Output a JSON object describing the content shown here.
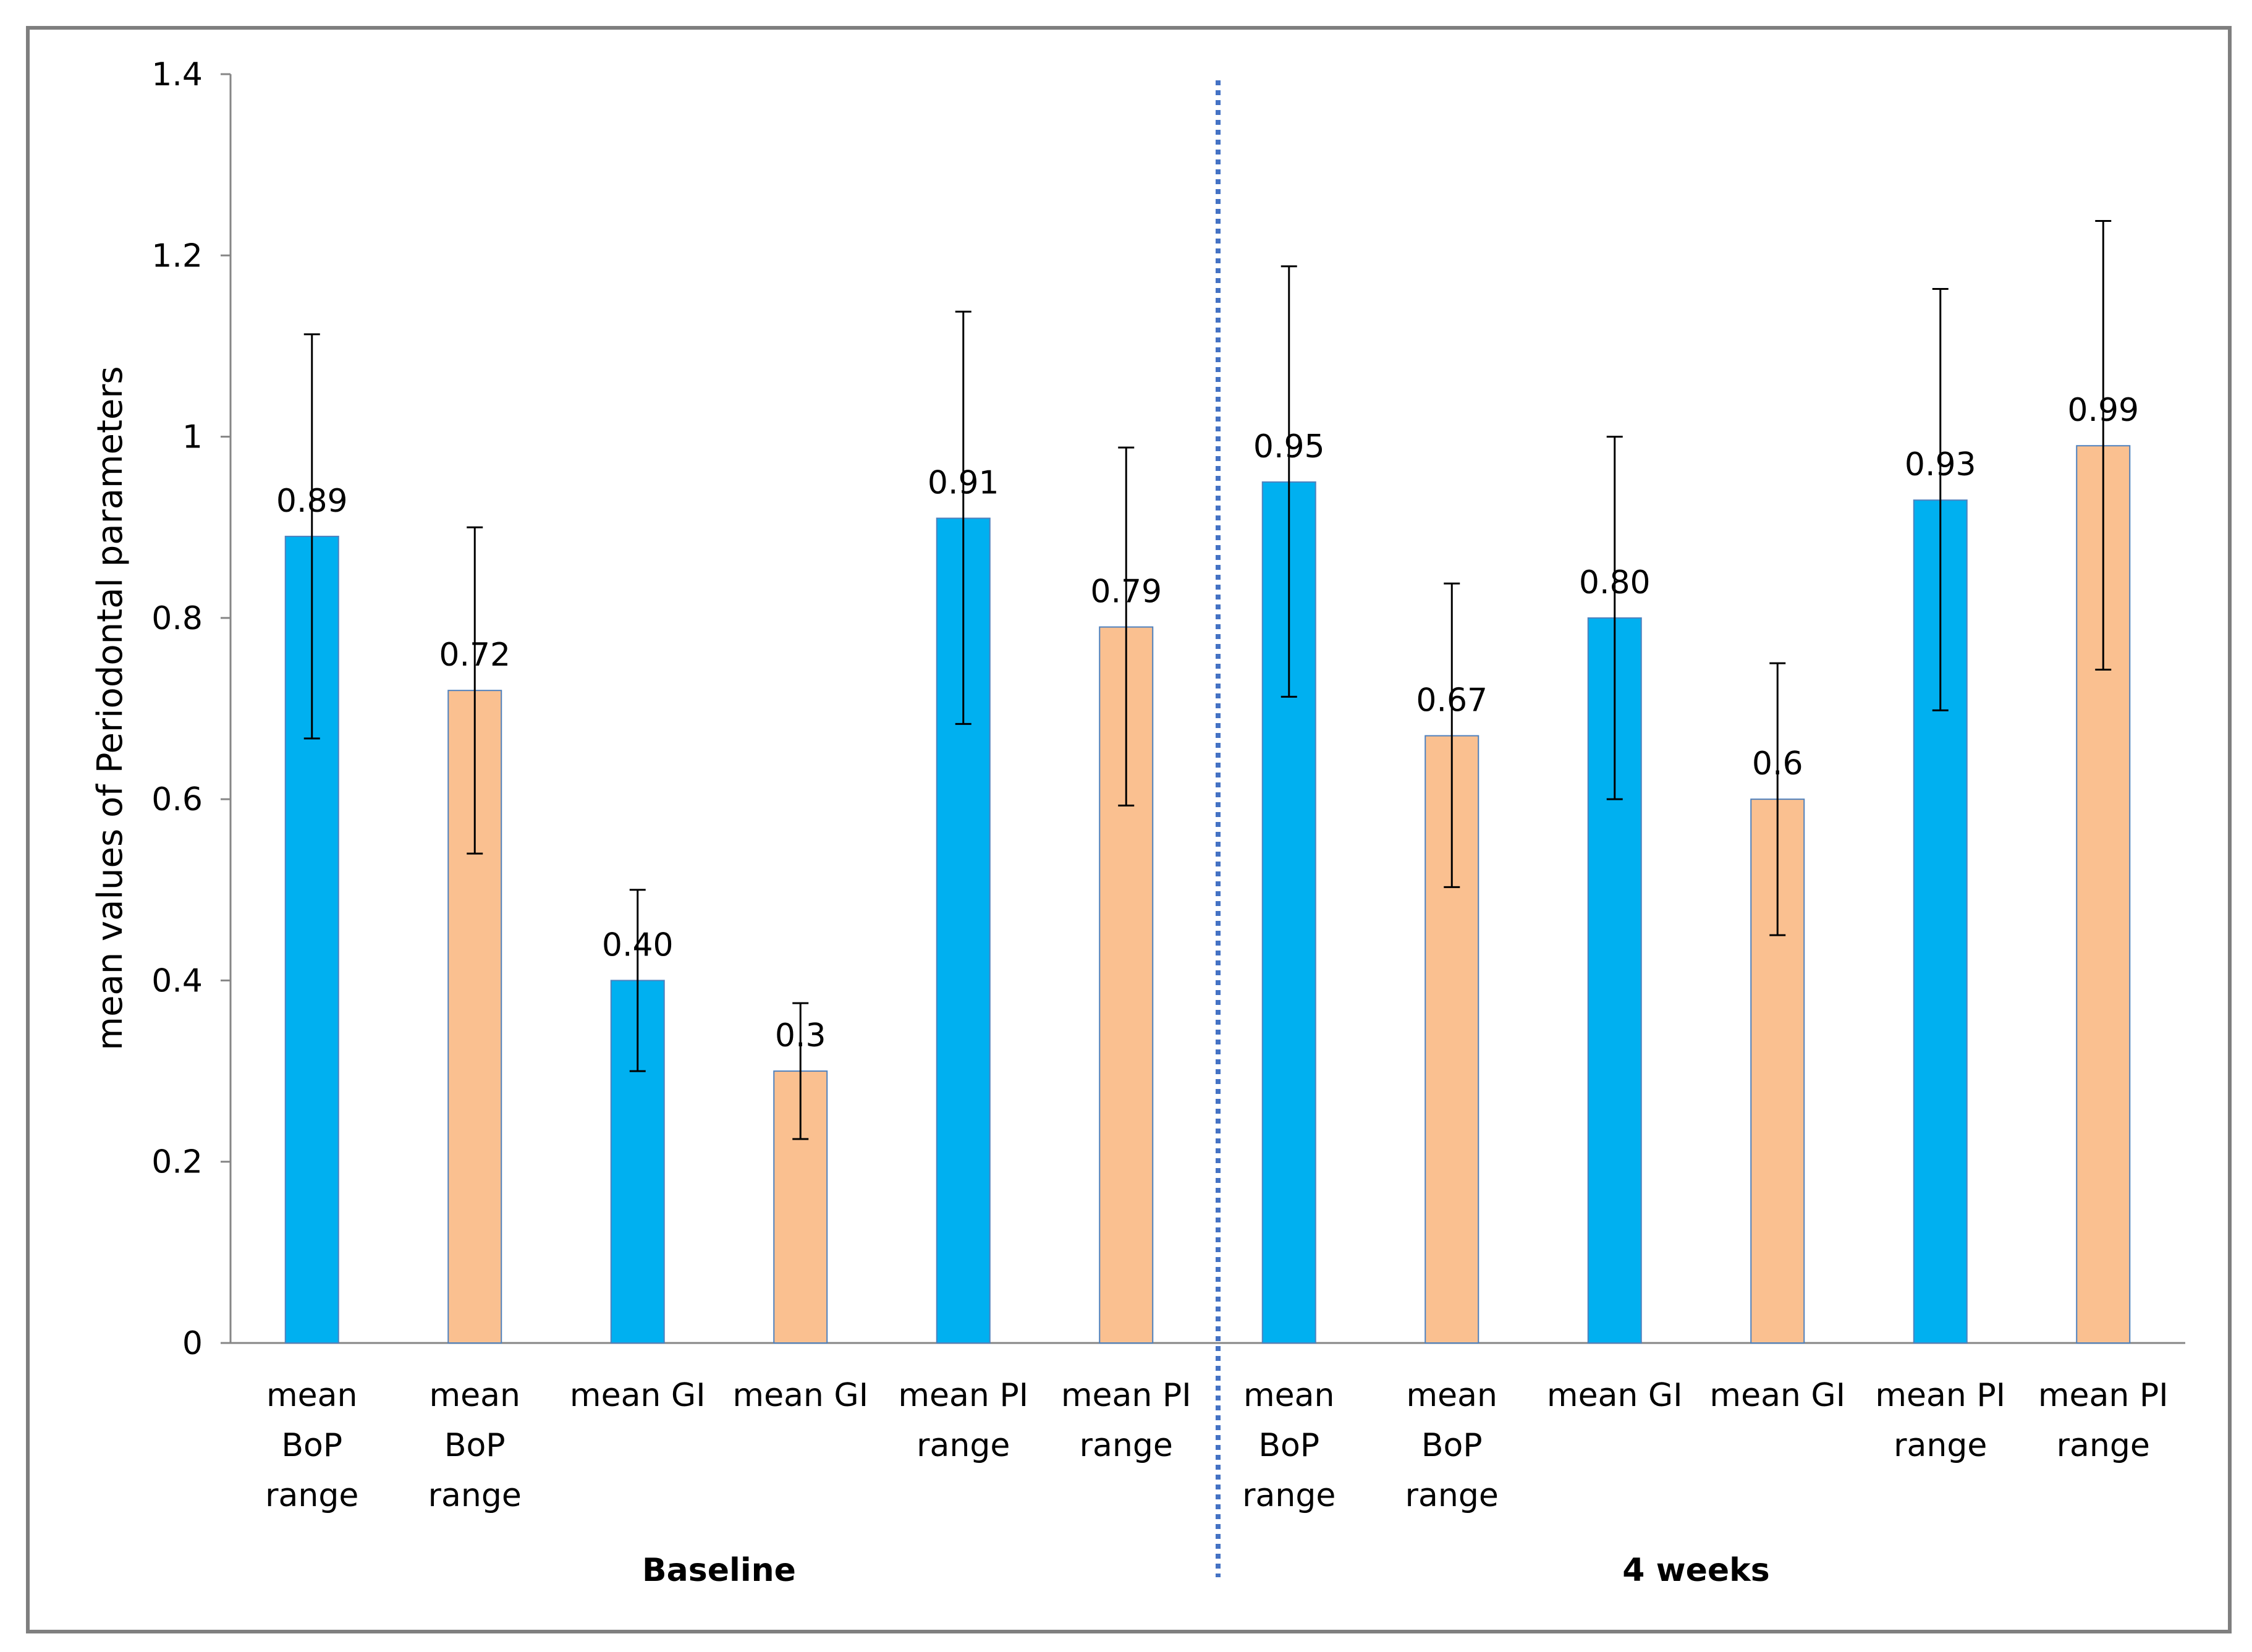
{
  "chart_data": {
    "type": "bar",
    "title": "",
    "xlabel": "",
    "ylabel": "mean values of Periodontal parameters",
    "ylim": [
      0,
      1.4
    ],
    "yticks": [
      0,
      0.2,
      0.4,
      0.6,
      0.8,
      1,
      1.2,
      1.4
    ],
    "ytick_labels": [
      "0",
      "0.2",
      "0.4",
      "0.6",
      "0.8",
      "1",
      "1.2",
      "1.4"
    ],
    "grid": false,
    "legend": "none",
    "colors": {
      "blue": "#00B0F0",
      "orange": "#FAC090",
      "bar_edge": "#4F81BD",
      "separator": "#4472C4",
      "frame": "#7F7F7F",
      "axis": "#868686"
    },
    "groups": [
      {
        "name": "Baseline",
        "bars": [
          {
            "category": [
              "mean",
              "BoP",
              "range"
            ],
            "value": 0.89,
            "label": "0.89",
            "err_low": 0.667,
            "err_high": 1.113,
            "color": "blue"
          },
          {
            "category": [
              "mean",
              "BoP",
              "range"
            ],
            "value": 0.72,
            "label": "0.72",
            "err_low": 0.54,
            "err_high": 0.9,
            "color": "orange"
          },
          {
            "category": [
              "mean GI"
            ],
            "value": 0.4,
            "label": "0.40",
            "err_low": 0.3,
            "err_high": 0.5,
            "color": "blue"
          },
          {
            "category": [
              "mean GI"
            ],
            "value": 0.3,
            "label": "0.3",
            "err_low": 0.225,
            "err_high": 0.375,
            "color": "orange"
          },
          {
            "category": [
              "mean PI",
              "range"
            ],
            "value": 0.91,
            "label": "0.91",
            "err_low": 0.683,
            "err_high": 1.138,
            "color": "blue"
          },
          {
            "category": [
              "mean PI",
              "range"
            ],
            "value": 0.79,
            "label": "0.79",
            "err_low": 0.593,
            "err_high": 0.988,
            "color": "orange"
          }
        ]
      },
      {
        "name": "4 weeks",
        "bars": [
          {
            "category": [
              "mean",
              "BoP",
              "range"
            ],
            "value": 0.95,
            "label": "0.95",
            "err_low": 0.713,
            "err_high": 1.188,
            "color": "blue"
          },
          {
            "category": [
              "mean",
              "BoP",
              "range"
            ],
            "value": 0.67,
            "label": "0.67",
            "err_low": 0.503,
            "err_high": 0.838,
            "color": "orange"
          },
          {
            "category": [
              "mean GI"
            ],
            "value": 0.8,
            "label": "0.80",
            "err_low": 0.6,
            "err_high": 1.0,
            "color": "blue"
          },
          {
            "category": [
              "mean GI"
            ],
            "value": 0.6,
            "label": "0.6",
            "err_low": 0.45,
            "err_high": 0.75,
            "color": "orange"
          },
          {
            "category": [
              "mean PI",
              "range"
            ],
            "value": 0.93,
            "label": "0.93",
            "err_low": 0.698,
            "err_high": 1.163,
            "color": "blue"
          },
          {
            "category": [
              "mean PI",
              "range"
            ],
            "value": 0.99,
            "label": "0.99",
            "err_low": 0.743,
            "err_high": 1.238,
            "color": "orange"
          }
        ]
      }
    ]
  }
}
